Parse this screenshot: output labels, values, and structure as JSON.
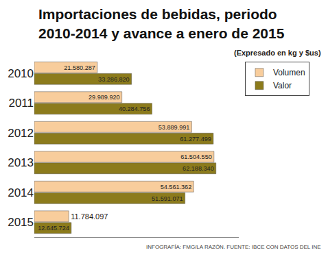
{
  "chart_data": {
    "type": "bar",
    "orientation": "horizontal",
    "title": [
      "Importaciones de bebidas, periodo",
      "2010-2014 y avance a enero de 2015"
    ],
    "subtitle": "(Expresado en kg y $us)",
    "annotations": [
      "INFOGRAFÍA: FMG/LA RAZÓN. FUENTE: IBCE CON DATOS DEL INE"
    ],
    "categories": [
      "2010",
      "2011",
      "2012",
      "2013",
      "2014",
      "2015"
    ],
    "series": [
      {
        "name": "Volumen",
        "color": "#f8cd9c",
        "values": [
          21580287,
          29989920,
          53889991,
          61504550,
          54561362,
          11784097
        ],
        "value_labels": [
          "21.580.287",
          "29.989.920",
          "53.889.991",
          "61.504.550",
          "54.561.362",
          "11.784.097"
        ]
      },
      {
        "name": "Valor",
        "color": "#8c7b1c",
        "values": [
          33286820,
          40284756,
          61277499,
          62188340,
          51591071,
          12645724
        ],
        "value_labels": [
          "33.286.820",
          "40.284.756",
          "61.277.499",
          "62.188.340",
          "51.591.071",
          "12.645.724"
        ]
      }
    ],
    "xlim": [
      0,
      70000000
    ],
    "tick_labels": "y",
    "data_labels": true,
    "legend": "top right",
    "grid": false
  }
}
